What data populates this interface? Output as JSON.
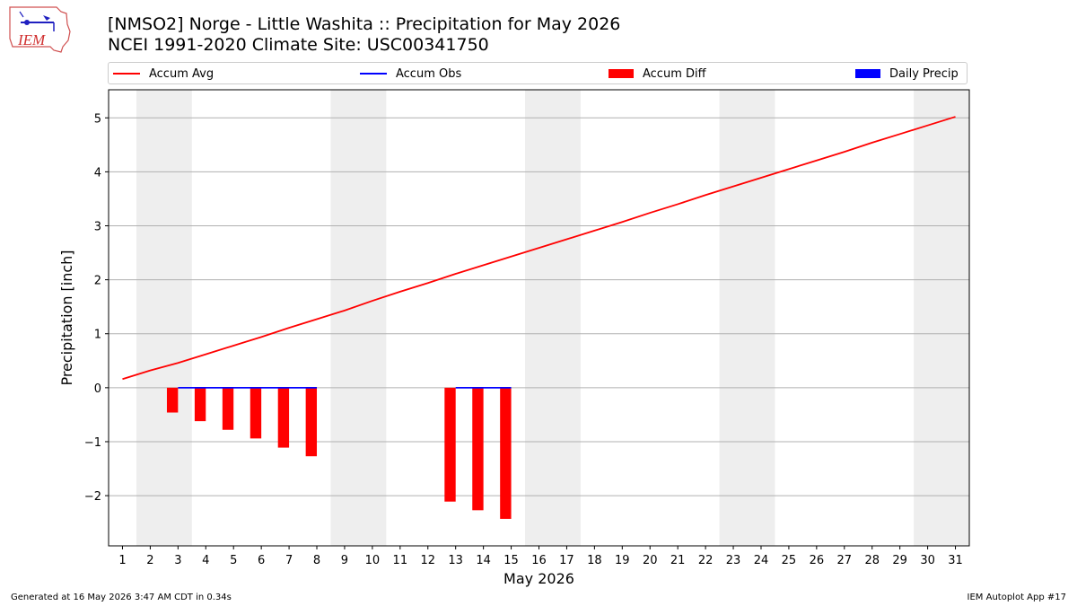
{
  "logo": {
    "text": "IEM",
    "icon": "iem-logo-icon"
  },
  "title_line1": "[NMSO2] Norge - Little Washita :: Precipitation for May 2026",
  "title_line2": "NCEI 1991-2020 Climate Site: USC00341750",
  "legend": [
    {
      "label": "Accum Avg",
      "type": "line",
      "color": "#ff0000"
    },
    {
      "label": "Accum Obs",
      "type": "line",
      "color": "#0000ff"
    },
    {
      "label": "Accum Diff",
      "type": "patch",
      "color": "#ff0000"
    },
    {
      "label": "Daily Precip",
      "type": "patch",
      "color": "#0000ff"
    }
  ],
  "footer_left": "Generated at 16 May 2026 3:47 AM CDT in 0.34s",
  "footer_right": "IEM Autoplot App #17",
  "colors": {
    "avg": "#ff0000",
    "obs": "#0000ff",
    "diff": "#ff0000",
    "weekend": "#eeeeee",
    "grid": "#b0b0b0"
  },
  "chart_data": {
    "type": "line",
    "xlabel": "May 2026",
    "ylabel": "Precipitation [inch]",
    "xlim": [
      0.5,
      31.5
    ],
    "ylim": [
      -2.93,
      5.52
    ],
    "x_ticks": [
      1,
      2,
      3,
      4,
      5,
      6,
      7,
      8,
      9,
      10,
      11,
      12,
      13,
      14,
      15,
      16,
      17,
      18,
      19,
      20,
      21,
      22,
      23,
      24,
      25,
      26,
      27,
      28,
      29,
      30,
      31
    ],
    "y_ticks": [
      5,
      4,
      3,
      2,
      1,
      0,
      -1,
      -2
    ],
    "y_tick_labels": [
      "5",
      "4",
      "3",
      "2",
      "1",
      "0",
      "−1",
      "−2"
    ],
    "grid": "horizontal",
    "legend_position": "top",
    "weekend_shading": [
      [
        1.5,
        3.5
      ],
      [
        8.5,
        10.5
      ],
      [
        15.5,
        17.5
      ],
      [
        22.5,
        24.5
      ],
      [
        29.5,
        31.5
      ]
    ],
    "series": [
      {
        "name": "Accum Avg",
        "kind": "line",
        "x": [
          1,
          2,
          3,
          4,
          5,
          6,
          7,
          8,
          9,
          10,
          11,
          12,
          13,
          14,
          15,
          16,
          17,
          18,
          19,
          20,
          21,
          22,
          23,
          24,
          25,
          26,
          27,
          28,
          29,
          30,
          31
        ],
        "values": [
          0.16,
          0.32,
          0.46,
          0.62,
          0.78,
          0.94,
          1.11,
          1.27,
          1.43,
          1.61,
          1.78,
          1.94,
          2.11,
          2.27,
          2.43,
          2.59,
          2.75,
          2.91,
          3.07,
          3.24,
          3.4,
          3.57,
          3.73,
          3.89,
          4.05,
          4.21,
          4.37,
          4.54,
          4.7,
          4.86,
          5.02
        ]
      },
      {
        "name": "Accum Obs",
        "kind": "line",
        "segments": [
          {
            "x": [
              3,
              4,
              5,
              6,
              7,
              8
            ],
            "values": [
              0,
              0,
              0,
              0,
              0,
              0
            ]
          },
          {
            "x": [
              13,
              14,
              15
            ],
            "values": [
              0,
              0,
              0
            ]
          }
        ]
      },
      {
        "name": "Accum Diff",
        "kind": "bar",
        "x": [
          3,
          4,
          5,
          6,
          7,
          8,
          13,
          14,
          15
        ],
        "values": [
          -0.46,
          -0.62,
          -0.78,
          -0.94,
          -1.11,
          -1.27,
          -2.11,
          -2.27,
          -2.43
        ]
      },
      {
        "name": "Daily Precip",
        "kind": "bar",
        "x": [
          3,
          4,
          5,
          6,
          7,
          8,
          13,
          14,
          15
        ],
        "values": [
          0,
          0,
          0,
          0,
          0,
          0,
          0,
          0,
          0
        ]
      }
    ]
  }
}
